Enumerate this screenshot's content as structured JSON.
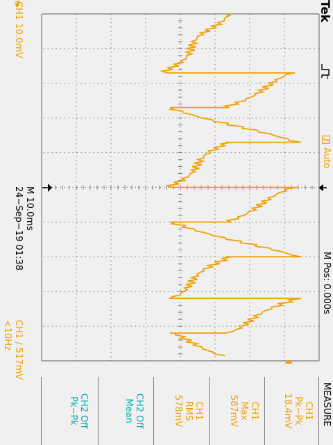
{
  "header": {
    "brand": "Tek",
    "trigger_state": "Auto",
    "horizontal_position": "M Pos: 0.000s"
  },
  "menu": {
    "title": "MEASURE",
    "measurements": [
      {
        "source": "CH1",
        "type": "Pk−Pk",
        "value": "18.4mV"
      },
      {
        "source": "CH1",
        "type": "Max",
        "value": "587mV"
      },
      {
        "source": "CH1",
        "type": "RMS",
        "value": "578mV"
      },
      {
        "source": "CH2 Off",
        "type": "Mean",
        "value": ""
      },
      {
        "source": "CH2 Off",
        "type": "Pk−Pk",
        "value": ""
      }
    ]
  },
  "footer": {
    "channel_scale": "CH1  10.0mV",
    "timebase": "M 10.0ms",
    "date_time": "24−Sep−19 01:38",
    "trigger_info": "CH1  ∕  517mV",
    "frequency": "<10Hz"
  },
  "colors": {
    "ch1": "#f0a000",
    "menu_off": "#00b0b0",
    "background": "#f0f0f0",
    "grid": "#7a7a7a"
  },
  "icons": {
    "trigger_level_marker": "arrow-left-icon",
    "trigger_position_marker": "arrow-down-icon",
    "ch1_ground_marker": "ch1-marker-icon",
    "acquisition_mode": "pulse-icon",
    "trigger_state": "trigger-box-icon"
  },
  "chart_data": {
    "type": "line",
    "series": [
      {
        "name": "CH1",
        "x_div": [
          0.0,
          1.7,
          1.7,
          2.7,
          2.7,
          3.7,
          3.7,
          5.0,
          5.0,
          6.0,
          6.0,
          7.0,
          7.0,
          8.2,
          8.2,
          9.2,
          9.2,
          9.9
        ],
        "y_div": [
          1.3,
          -0.4,
          3.3,
          1.3,
          -0.3,
          3.3,
          1.3,
          -0.3,
          3.3,
          1.3,
          -0.3,
          3.3,
          1.3,
          -0.3,
          3.3,
          1.3,
          -0.3,
          1.4
        ]
      }
    ],
    "xlabel": "",
    "ylabel": "",
    "grid": true
  }
}
